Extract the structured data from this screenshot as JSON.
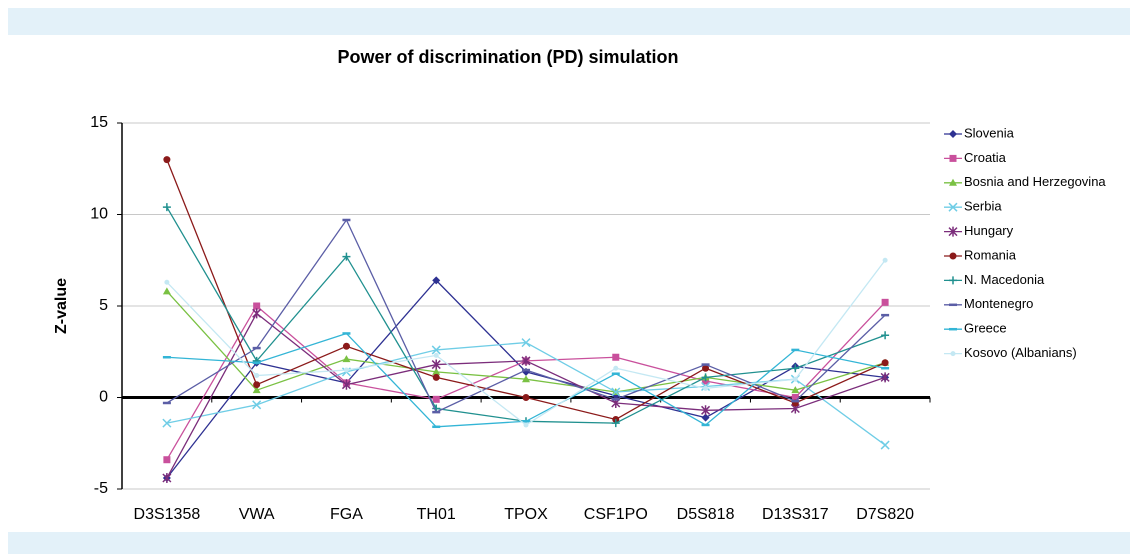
{
  "chart_data": {
    "type": "line",
    "title": "Power of discrimination (PD) simulation",
    "y_label": "Z-value",
    "categories": [
      "D3S1358",
      "VWA",
      "FGA",
      "TH01",
      "TPOX",
      "CSF1PO",
      "D5S818",
      "D13S317",
      "D7S820"
    ],
    "ylim": [
      -5,
      15
    ],
    "yticks": [
      -5,
      0,
      5,
      10,
      15
    ],
    "grid": true,
    "legend": "right",
    "series": [
      {
        "name": "Slovenia",
        "color": "#2e3192",
        "marker": "diamond",
        "values": [
          -4.4,
          1.9,
          0.8,
          6.4,
          1.4,
          0.1,
          -1.1,
          1.7,
          1.1
        ]
      },
      {
        "name": "Croatia",
        "color": "#c9509c",
        "marker": "square",
        "values": [
          -3.4,
          5.0,
          0.8,
          -0.1,
          2.0,
          2.2,
          0.9,
          0.0,
          5.2
        ]
      },
      {
        "name": "Bosnia and Herzegovina",
        "color": "#7ac143",
        "marker": "triangle",
        "values": [
          5.8,
          0.4,
          2.1,
          1.4,
          1.0,
          0.3,
          1.1,
          0.4,
          1.9
        ]
      },
      {
        "name": "Serbia",
        "color": "#6fcde6",
        "marker": "x",
        "values": [
          -1.4,
          -0.4,
          1.4,
          2.6,
          3.0,
          0.3,
          0.6,
          1.0,
          -2.6
        ]
      },
      {
        "name": "Hungary",
        "color": "#7b2d7b",
        "marker": "star",
        "values": [
          -4.4,
          4.6,
          0.7,
          1.8,
          2.0,
          -0.3,
          -0.7,
          -0.6,
          1.1
        ]
      },
      {
        "name": "Romania",
        "color": "#8b1a1a",
        "marker": "circle",
        "values": [
          13.0,
          0.7,
          2.8,
          1.1,
          0.0,
          -1.2,
          1.6,
          -0.3,
          1.9
        ]
      },
      {
        "name": "N. Macedonia",
        "color": "#20908f",
        "marker": "plus",
        "values": [
          10.4,
          2.0,
          7.7,
          -0.6,
          -1.3,
          -1.4,
          1.1,
          1.6,
          3.4
        ]
      },
      {
        "name": "Montenegro",
        "color": "#5b5ea6",
        "marker": "dash",
        "values": [
          -0.3,
          2.7,
          9.7,
          -0.8,
          1.5,
          -0.1,
          1.8,
          -0.2,
          4.5
        ]
      },
      {
        "name": "Greece",
        "color": "#33b5d6",
        "marker": "dash",
        "values": [
          2.2,
          1.9,
          3.5,
          -1.6,
          -1.3,
          1.3,
          -1.5,
          2.6,
          1.6
        ]
      },
      {
        "name": "Kosovo (Albanians)",
        "color": "#c4e8f3",
        "marker": "dot",
        "values": [
          6.3,
          1.2,
          1.5,
          2.3,
          -1.5,
          1.6,
          0.5,
          1.0,
          7.5
        ]
      }
    ]
  }
}
